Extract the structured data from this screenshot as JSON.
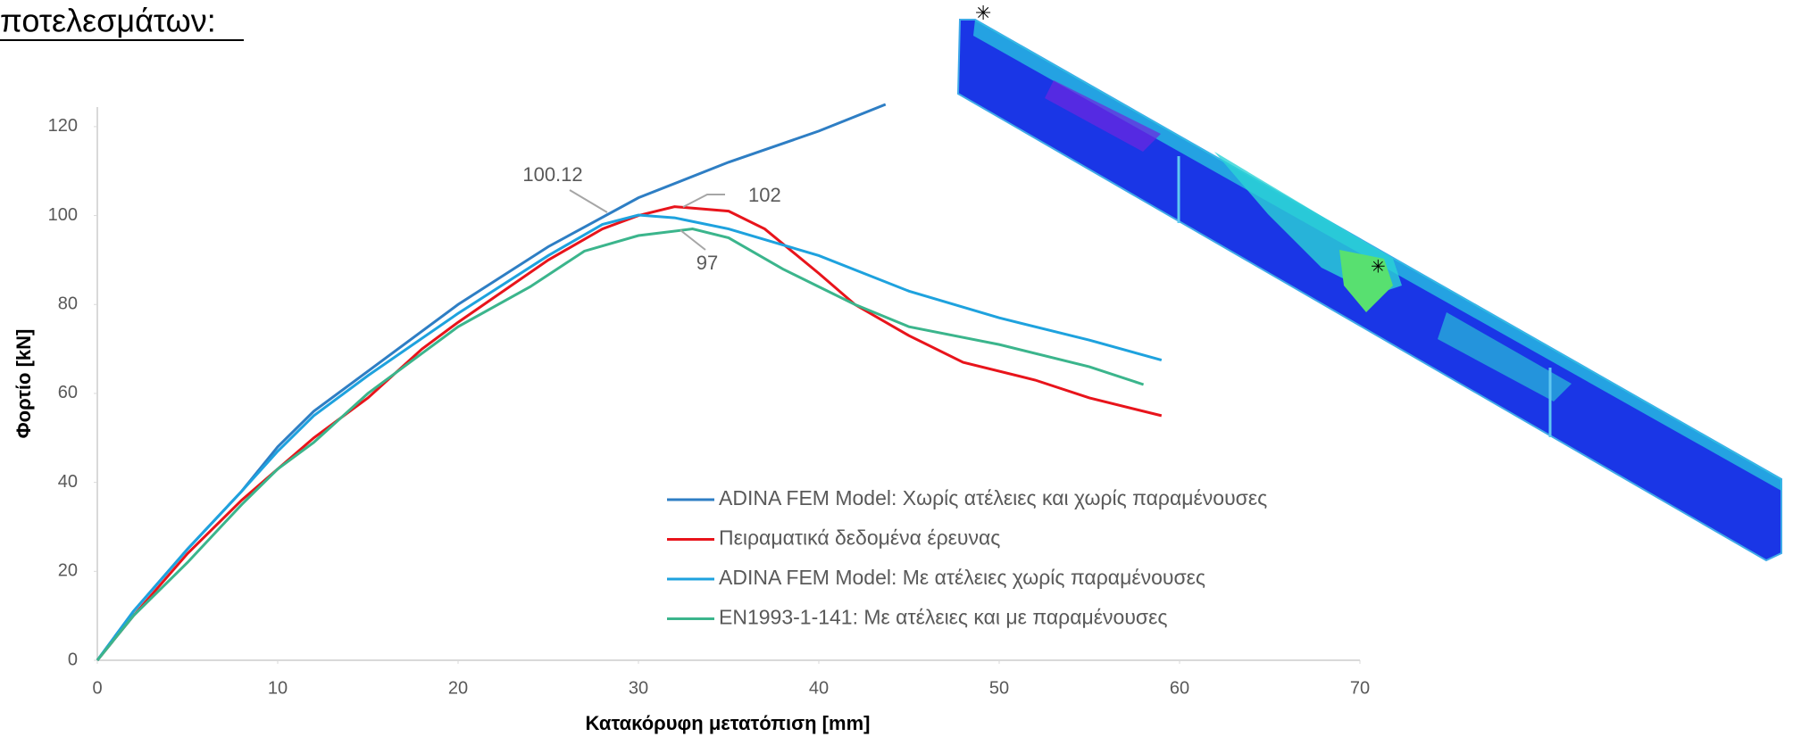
{
  "header": {
    "title": "ποτελεσμάτων:"
  },
  "chart_data": {
    "type": "line",
    "x_label": "Κατακόρυφη μετατόπιση [mm]",
    "y_label": "Φορτίο [kN]",
    "xlim": [
      0,
      70
    ],
    "xticks": [
      0,
      10,
      20,
      30,
      40,
      50,
      60,
      70
    ],
    "ylim": [
      0,
      125
    ],
    "yticks": [
      0,
      20,
      40,
      60,
      80,
      100,
      120
    ],
    "grid": false,
    "annotations": [
      "100.12",
      "102",
      "97"
    ],
    "series": [
      {
        "name": "ADINA FEM Model: Χωρίς ατέλειες και χωρίς παραμένουσες",
        "color": "#2e7ec4",
        "x": [
          0,
          2,
          5,
          8,
          10,
          12,
          15,
          20,
          25,
          30,
          35,
          40,
          43.7
        ],
        "values": [
          0,
          11,
          25,
          38,
          48,
          56,
          65,
          80,
          93,
          104,
          112,
          119,
          125
        ]
      },
      {
        "name": "Πειραματικά δεδομένα έρευνας",
        "color": "#e8141b",
        "x": [
          0,
          2,
          5,
          8,
          10,
          12,
          15,
          18,
          20,
          25,
          28,
          30,
          32,
          35,
          37,
          40,
          42,
          45,
          48,
          52,
          55,
          59
        ],
        "values": [
          0,
          10,
          24,
          36,
          43,
          50,
          59,
          70,
          76,
          90,
          97,
          100,
          102,
          101,
          97,
          87,
          80,
          73,
          67,
          63,
          59,
          55
        ]
      },
      {
        "name": "ADINA FEM Model: Με ατέλειες χωρίς παραμένουσες",
        "color": "#1ea2de",
        "x": [
          0,
          2,
          5,
          8,
          10,
          12,
          15,
          20,
          25,
          28,
          30,
          32,
          35,
          40,
          45,
          50,
          55,
          59
        ],
        "values": [
          0,
          11,
          25,
          38,
          47,
          55,
          64,
          78,
          91,
          98,
          100.12,
          99.5,
          97,
          91,
          83,
          77,
          72,
          67.5
        ]
      },
      {
        "name": "EN1993-1-141: Με ατέλειες και με παραμένουσες",
        "color": "#3bb58c",
        "x": [
          0,
          2,
          5,
          8,
          10,
          12,
          15,
          18,
          20,
          24,
          27,
          30,
          33,
          35,
          38,
          40,
          42,
          45,
          50,
          55,
          58
        ],
        "values": [
          0,
          10,
          22,
          35,
          43,
          49,
          60,
          69,
          75,
          84,
          92,
          95.5,
          97,
          95,
          88,
          84,
          80,
          75,
          71,
          66,
          62
        ]
      }
    ]
  }
}
